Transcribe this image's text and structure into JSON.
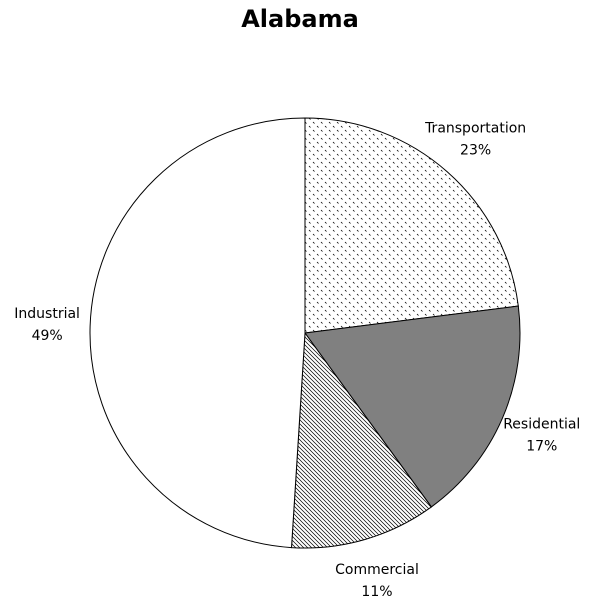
{
  "chart_data": {
    "type": "pie",
    "title": "Alabama",
    "categories": [
      "Transportation",
      "Residential",
      "Commercial",
      "Industrial"
    ],
    "values": [
      23,
      17,
      11,
      49
    ],
    "value_labels": [
      "23%",
      "17%",
      "11%",
      "49%"
    ],
    "colors": [
      "#ffffff",
      "#808080",
      "#ffffff",
      "#ffffff"
    ]
  }
}
